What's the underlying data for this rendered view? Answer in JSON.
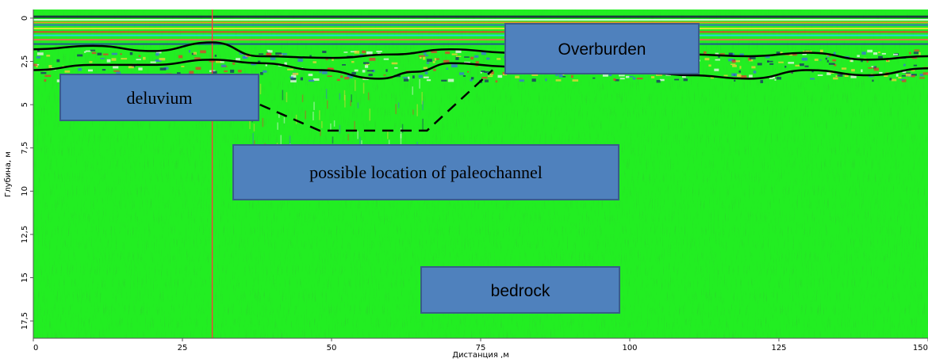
{
  "chart_data": {
    "type": "heatmap",
    "title": "",
    "xlabel": "Дистанция ,м",
    "ylabel": "Глубина, м",
    "xlim": [
      0,
      150
    ],
    "ylim": [
      18.5,
      -0.5
    ],
    "x_ticks": [
      {
        "value": 0,
        "label": "0"
      },
      {
        "value": 25,
        "label": "25"
      },
      {
        "value": 50,
        "label": "50"
      },
      {
        "value": 75,
        "label": "75"
      },
      {
        "value": 100,
        "label": "100"
      },
      {
        "value": 125,
        "label": "125"
      },
      {
        "value": 150,
        "label": "150"
      }
    ],
    "y_ticks": [
      {
        "value": 0,
        "label": "0"
      },
      {
        "value": 2.5,
        "label": "2,5"
      },
      {
        "value": 5,
        "label": "5"
      },
      {
        "value": 7.5,
        "label": "7,5"
      },
      {
        "value": 10,
        "label": "10"
      },
      {
        "value": 12.5,
        "label": "12,5"
      },
      {
        "value": 15,
        "label": "15"
      },
      {
        "value": 17.5,
        "label": "17,5"
      }
    ],
    "background_color": "#22ee22",
    "marker_line": {
      "x": 30,
      "color": "#ff3b3b"
    },
    "interpreted_boundaries": {
      "overburden_base": [
        [
          0,
          1.8
        ],
        [
          10,
          1.6
        ],
        [
          20,
          1.9
        ],
        [
          30,
          1.4
        ],
        [
          38,
          2.2
        ],
        [
          50,
          2.3
        ],
        [
          60,
          2.1
        ],
        [
          70,
          1.8
        ],
        [
          80,
          2.0
        ],
        [
          90,
          2.4
        ],
        [
          100,
          2.3
        ],
        [
          110,
          2.1
        ],
        [
          120,
          2.2
        ],
        [
          130,
          2.0
        ],
        [
          140,
          2.4
        ],
        [
          150,
          2.2
        ]
      ],
      "deluvium_base": [
        [
          0,
          3.0
        ],
        [
          10,
          2.7
        ],
        [
          20,
          2.7
        ],
        [
          30,
          2.4
        ],
        [
          38,
          2.6
        ],
        [
          48,
          3.0
        ],
        [
          58,
          3.5
        ],
        [
          64,
          3.1
        ],
        [
          70,
          2.6
        ],
        [
          80,
          2.8
        ],
        [
          95,
          2.7
        ],
        [
          104,
          2.7
        ],
        [
          104.5,
          3.2
        ],
        [
          110,
          3.3
        ],
        [
          120,
          3.5
        ],
        [
          130,
          3.0
        ],
        [
          140,
          3.3
        ],
        [
          150,
          2.9
        ]
      ],
      "paleochannel_outline": [
        [
          38,
          5.0
        ],
        [
          48,
          6.5
        ],
        [
          66,
          6.5
        ],
        [
          77,
          3.0
        ]
      ]
    },
    "annotations": [
      {
        "text": "deluvium",
        "font": "serif"
      },
      {
        "text": "Overburden",
        "font": "sans"
      },
      {
        "text": "possible location of paleochannel",
        "font": "serif"
      },
      {
        "text": "bedrock",
        "font": "sans"
      }
    ],
    "box_colors": {
      "fill": "#4f81bd",
      "stroke": "#385d8a"
    }
  }
}
